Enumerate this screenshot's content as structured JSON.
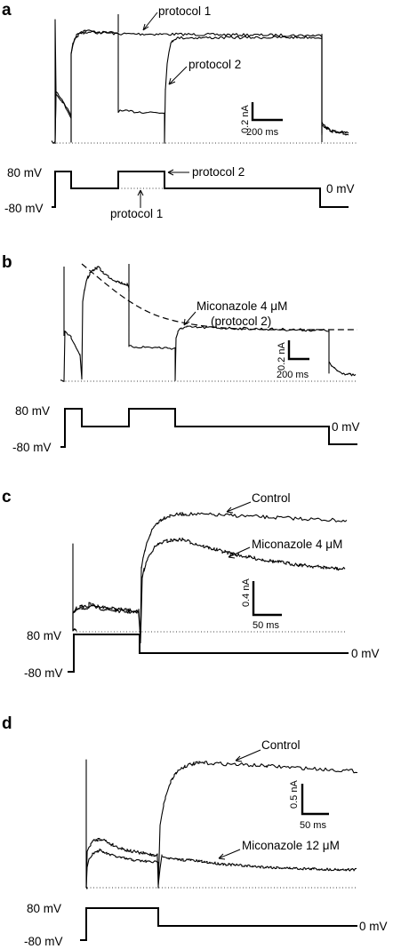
{
  "panels": [
    {
      "letter": "a",
      "current": {
        "label_protocol_1": "protocol 1",
        "label_protocol_2": "protocol 2"
      },
      "scale": {
        "current": "0.2 nA",
        "time": "200 ms"
      },
      "voltage": {
        "high": "80 mV",
        "low": "-80 mV",
        "end": "0 mV",
        "label_protocol_2": "protocol 2",
        "label_protocol_1": "protocol 1"
      }
    },
    {
      "letter": "b",
      "current": {
        "label_line1": "Miconazole 4 μM",
        "label_line2": "(protocol 2)"
      },
      "scale": {
        "current": "0.2 nA",
        "time": "200 ms"
      },
      "voltage": {
        "high": "80 mV",
        "low": "-80 mV",
        "end": "0 mV"
      }
    },
    {
      "letter": "c",
      "current": {
        "label_control": "Control",
        "label_drug": "Miconazole 4 μM"
      },
      "scale": {
        "current": "0.4 nA",
        "time": "50 ms"
      },
      "voltage": {
        "high": "80 mV",
        "low": "-80 mV",
        "end": "0 mV"
      }
    },
    {
      "letter": "d",
      "current": {
        "label_control": "Control",
        "label_drug": "Miconazole 12 μM"
      },
      "scale": {
        "current": "0.5 nA",
        "time": "50 ms"
      },
      "voltage": {
        "high": "80 mV",
        "low": "-80 mV",
        "end": "0 mV"
      }
    }
  ]
}
